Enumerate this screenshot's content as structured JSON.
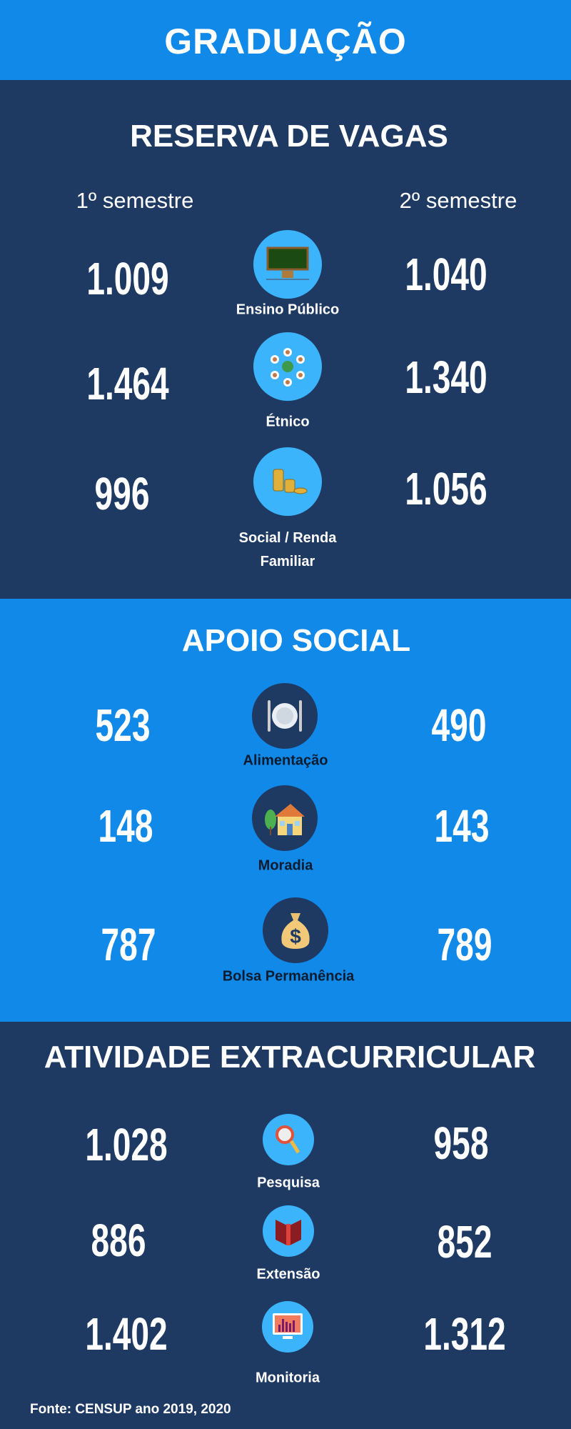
{
  "header": {
    "title": "GRADUAÇÃO"
  },
  "colors": {
    "header": "#1089e8",
    "dark": "#1e3a63",
    "light_section": "#1089e8",
    "icon_circle": "#3bb4fb"
  },
  "columns": {
    "first": "1º semestre",
    "second": "2º semestre"
  },
  "reserva": {
    "title": "RESERVA DE VAGAS",
    "rows": [
      {
        "label": "Ensino Público",
        "icon": "chalkboard-icon",
        "s1": "1.009",
        "s2": "1.040"
      },
      {
        "label": "Étnico",
        "icon": "diverse-people-globe-icon",
        "s1": "1.464",
        "s2": "1.340"
      },
      {
        "label": "Social / Renda Familiar",
        "icon": "coins-icon",
        "s1": "996",
        "s2": "1.056"
      }
    ]
  },
  "apoio": {
    "title": "APOIO SOCIAL",
    "rows": [
      {
        "label": "Alimentação",
        "icon": "plate-cutlery-icon",
        "s1": "523",
        "s2": "490"
      },
      {
        "label": "Moradia",
        "icon": "house-icon",
        "s1": "148",
        "s2": "143"
      },
      {
        "label": "Bolsa Permanência",
        "icon": "money-bag-icon",
        "s1": "787",
        "s2": "789"
      }
    ]
  },
  "atividade": {
    "title": "ATIVIDADE EXTRACURRICULAR",
    "rows": [
      {
        "label": "Pesquisa",
        "icon": "magnifier-icon",
        "s1": "1.028",
        "s2": "958"
      },
      {
        "label": "Extensão",
        "icon": "book-icon",
        "s1": "886",
        "s2": "852"
      },
      {
        "label": "Monitoria",
        "icon": "monitor-chart-icon",
        "s1": "1.402",
        "s2": "1.312"
      }
    ]
  },
  "footer": {
    "source": "Fonte: CENSUP ano 2019, 2020"
  }
}
